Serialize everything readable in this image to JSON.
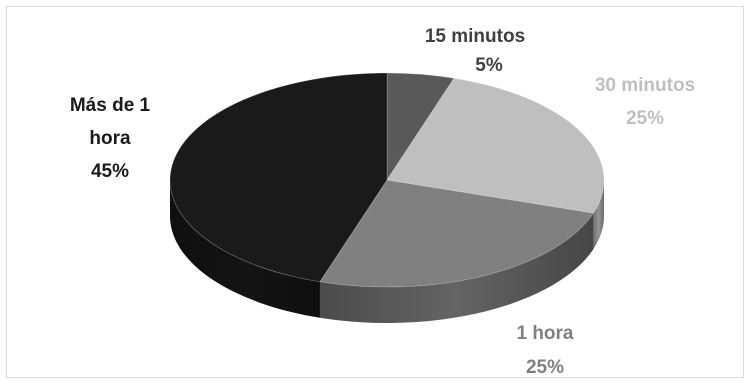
{
  "chart_data": {
    "type": "pie",
    "style": "3d",
    "categories": [
      "15 minutos",
      "30 minutos",
      "1 hora",
      "Más de 1 hora"
    ],
    "values": [
      5,
      25,
      25,
      45
    ],
    "percent_labels": [
      "5%",
      "25%",
      "25%",
      "45%"
    ],
    "colors": {
      "15 minutos": "#595959",
      "30 minutos": "#bfbfbf",
      "1 hora": "#808080",
      "Más de 1 hora": "#1a1a1a"
    },
    "label_colors": {
      "15 minutos": "#404040",
      "30 minutos": "#bfbfbf",
      "1 hora": "#808080",
      "Más de 1 hora": "#1a1a1a"
    },
    "title": "",
    "legend": "none"
  }
}
